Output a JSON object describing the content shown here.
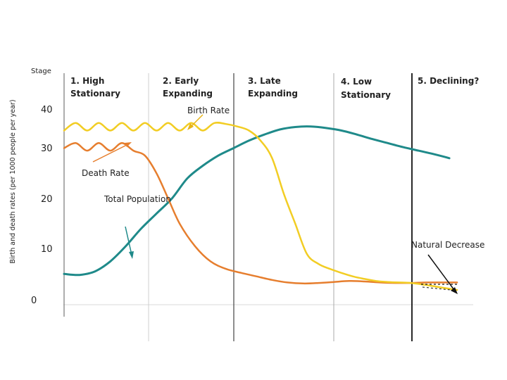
{
  "chart_data": {
    "type": "line",
    "title": "",
    "xlabel": "",
    "ylabel": "Birth and death rates (per 1000 people per year)",
    "corner_label": "Stage",
    "ylim": [
      0,
      45
    ],
    "yticks": [
      "40",
      "30",
      "20",
      "10",
      "0"
    ],
    "grid": false,
    "stages": [
      {
        "line1": "1. High",
        "line2": "Stationary"
      },
      {
        "line1": "2. Early",
        "line2": "Expanding"
      },
      {
        "line1": "3. Late",
        "line2": "Expanding"
      },
      {
        "line1": "4. Low",
        "line2": "Stationary"
      },
      {
        "line1": "5. Declining?",
        "line2": ""
      }
    ],
    "x_range": [
      0,
      5.2
    ],
    "series": [
      {
        "name": "Birth Rate",
        "color": "#f2cd24",
        "x": [
          0,
          0.15,
          0.3,
          0.45,
          0.6,
          0.75,
          0.9,
          1.05,
          1.2,
          1.35,
          1.5,
          1.65,
          1.8,
          1.95,
          2.1,
          2.25,
          2.4,
          2.55,
          2.7,
          2.85,
          3.0,
          3.15,
          3.3,
          3.45,
          3.6,
          3.75,
          3.9,
          4.05,
          4.2,
          4.35,
          4.5,
          4.7,
          4.9,
          5.1
        ],
        "y": [
          33.5,
          35,
          33.5,
          35,
          33.5,
          35,
          33.5,
          35,
          33.5,
          35,
          33.5,
          35,
          33.5,
          35,
          34.8,
          34.3,
          33.5,
          31.5,
          28,
          21,
          15,
          9,
          7,
          6,
          5.2,
          4.5,
          4,
          3.6,
          3.4,
          3.3,
          3.2,
          2.8,
          2.3,
          1.8
        ]
      },
      {
        "name": "Death Rate",
        "color": "#e67e2e",
        "x": [
          0,
          0.15,
          0.3,
          0.45,
          0.6,
          0.75,
          0.9,
          1.05,
          1.2,
          1.35,
          1.5,
          1.7,
          1.9,
          2.1,
          2.3,
          2.5,
          2.7,
          2.9,
          3.1,
          3.3,
          3.5,
          3.7,
          3.9,
          4.1,
          4.3,
          4.5,
          4.7,
          4.9,
          5.1
        ],
        "y": [
          30,
          31,
          29.5,
          31,
          29.5,
          31,
          29.5,
          28.5,
          25,
          20,
          15,
          10.5,
          7.5,
          6,
          5.2,
          4.5,
          3.8,
          3.3,
          3.1,
          3.2,
          3.4,
          3.6,
          3.5,
          3.3,
          3.2,
          3.2,
          3.3,
          3.3,
          3.3
        ]
      },
      {
        "name": "Total Population",
        "color": "#1f8a8a",
        "x": [
          0,
          0.2,
          0.4,
          0.6,
          0.8,
          1.0,
          1.2,
          1.4,
          1.6,
          1.8,
          2.0,
          2.2,
          2.4,
          2.6,
          2.8,
          3.0,
          3.2,
          3.4,
          3.6,
          3.8,
          4.0,
          4.2,
          4.4,
          4.6,
          4.8,
          5.0
        ],
        "y": [
          5,
          4.8,
          5.5,
          7.5,
          10.5,
          14,
          17,
          20,
          24,
          26.5,
          28.5,
          30,
          31.5,
          32.7,
          33.7,
          34.2,
          34.3,
          34,
          33.5,
          32.7,
          31.8,
          31,
          30.2,
          29.5,
          28.8,
          28
        ]
      }
    ],
    "annotations": {
      "birth_rate": "Birth Rate",
      "death_rate": "Death Rate",
      "total_population": "Total Population",
      "natural_decrease": "Natural Decrease"
    }
  }
}
